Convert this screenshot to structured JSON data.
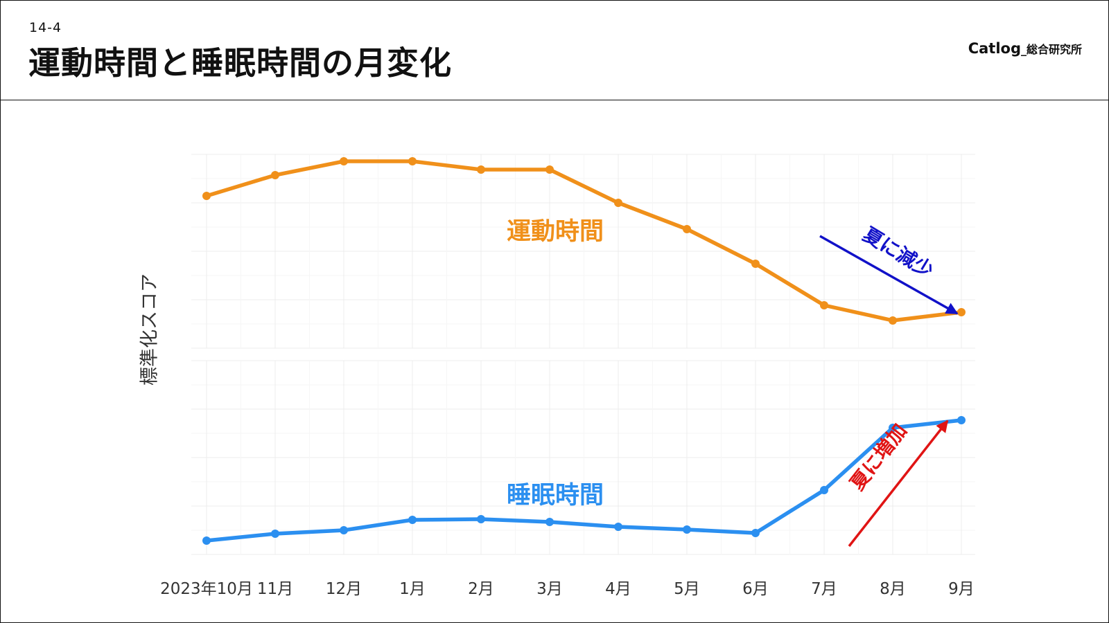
{
  "header": {
    "slide_number": "14-4",
    "title": "運動時間と睡眠時間の月変化",
    "brand": "Catlog",
    "brand_sub": "_総合研究所"
  },
  "chart_data": {
    "type": "line",
    "xlabel": "",
    "ylabel": "標準化スコア",
    "categories": [
      "2023年10月",
      "11月",
      "12月",
      "1月",
      "2月",
      "3月",
      "4月",
      "5月",
      "6月",
      "7月",
      "8月",
      "9月"
    ],
    "grid": true,
    "legend": "none",
    "panels": [
      {
        "name": "運動時間",
        "color": "#f0901a",
        "ylim": [
          -1.6,
          1.2
        ],
        "values": [
          0.6,
          0.9,
          1.1,
          1.1,
          0.98,
          0.98,
          0.5,
          0.12,
          -0.38,
          -0.98,
          -1.2,
          -1.08
        ]
      },
      {
        "name": "睡眠時間",
        "color": "#2b8ff0",
        "ylim": [
          -0.8,
          2.0
        ],
        "values": [
          -0.6,
          -0.5,
          -0.45,
          -0.3,
          -0.29,
          -0.33,
          -0.4,
          -0.44,
          -0.49,
          0.13,
          1.03,
          1.14
        ]
      }
    ],
    "annotations": [
      {
        "text": "夏に減少",
        "color": "#1111c8",
        "series": "運動時間"
      },
      {
        "text": "夏に増加",
        "color": "#e01414",
        "series": "睡眠時間"
      }
    ]
  }
}
